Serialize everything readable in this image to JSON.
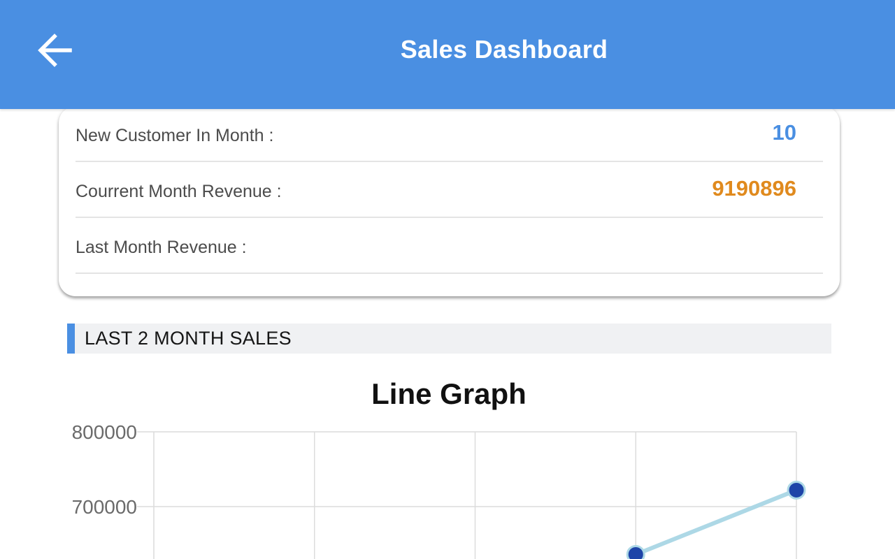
{
  "appbar": {
    "title": "Sales Dashboard",
    "back_icon": "arrow-left-icon",
    "background_color": "#4a8fe2"
  },
  "summary": {
    "rows": [
      {
        "label": "New Customer In Month :",
        "value": "10",
        "value_color": "#4a8fe2"
      },
      {
        "label": "Courrent Month Revenue :",
        "value": "9190896",
        "value_color": "#e08a1e"
      },
      {
        "label": "Last Month Revenue :",
        "value": "",
        "value_color": "#4a8fe2"
      }
    ]
  },
  "section": {
    "title": "LAST 2 MONTH SALES",
    "accent_color": "#4a8fe2"
  },
  "chart_data": {
    "type": "line",
    "title": "Line Graph",
    "xlabel": "",
    "ylabel": "",
    "y_ticks": [
      "800000",
      "700000"
    ],
    "ylim_visible": [
      700000,
      800000
    ],
    "x_gridlines": 5,
    "series": [
      {
        "color": "#add8e6",
        "point_color": "#1e44a8",
        "points": [
          {
            "x_index": 3,
            "y": 636000
          },
          {
            "x_index": 4,
            "y": 722000
          }
        ]
      }
    ],
    "grid": true
  }
}
